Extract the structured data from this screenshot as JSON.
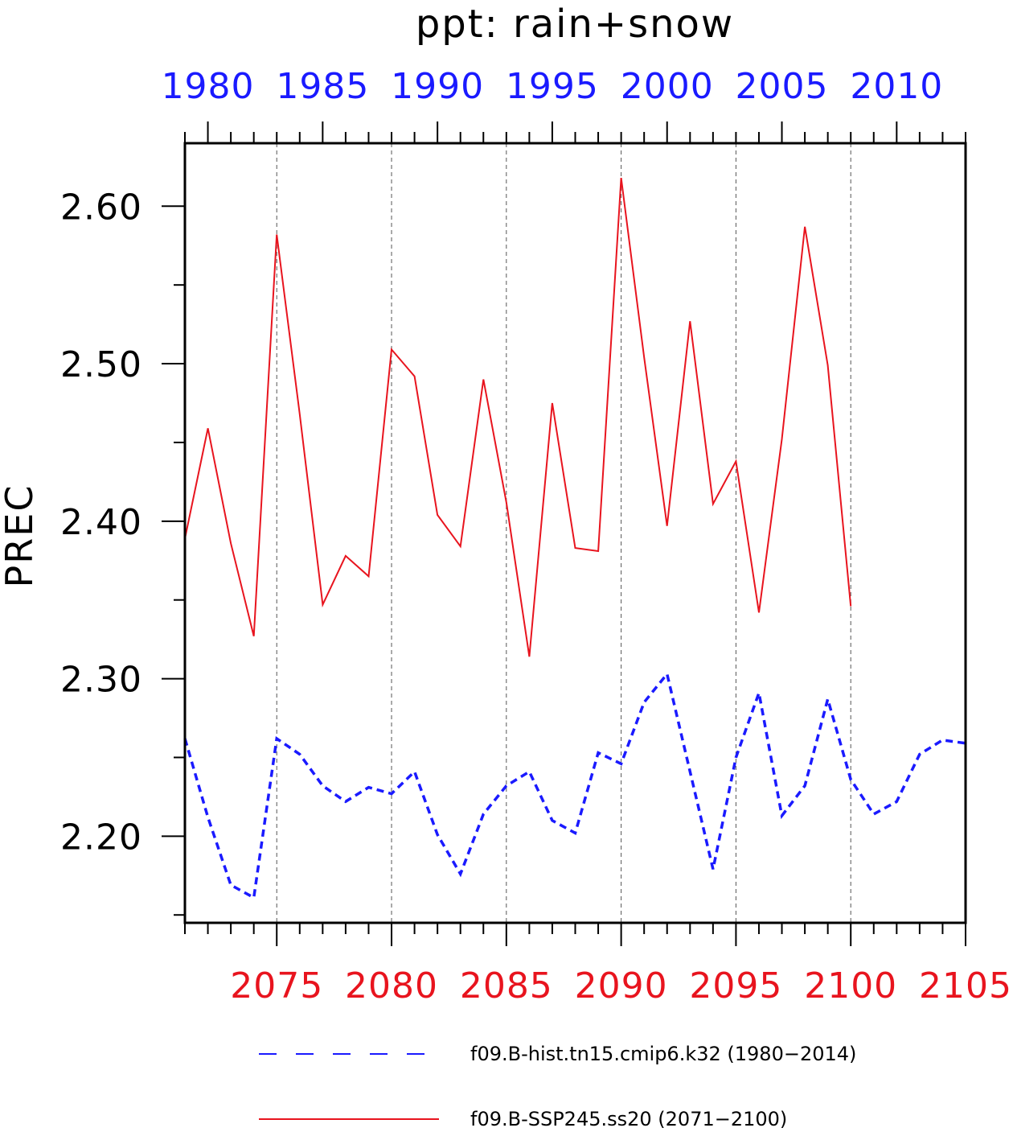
{
  "chart_data": {
    "type": "line",
    "title": "ppt: rain+snow",
    "ylabel": "PREC",
    "ylim": [
      2.145,
      2.64
    ],
    "yticks": [
      "2.20",
      "2.30",
      "2.40",
      "2.50",
      "2.60"
    ],
    "ytick_values": [
      2.2,
      2.3,
      2.4,
      2.5,
      2.6
    ],
    "grid": "vertical dashed at major bottom ticks",
    "top_axis": {
      "color": "#1a1aff",
      "range": [
        1979,
        2013
      ],
      "ticks": [
        "1980",
        "1985",
        "1990",
        "1995",
        "2000",
        "2005",
        "2010"
      ],
      "tick_values": [
        1980,
        1985,
        1990,
        1995,
        2000,
        2005,
        2010
      ]
    },
    "bottom_axis": {
      "color": "#e8141e",
      "range": [
        2071,
        2105
      ],
      "ticks": [
        "2075",
        "2080",
        "2085",
        "2090",
        "2095",
        "2100",
        "2105"
      ],
      "tick_values": [
        2075,
        2080,
        2085,
        2090,
        2095,
        2100,
        2105
      ]
    },
    "series": [
      {
        "name": "f09.B-hist.tn15.cmip6.k32 (1980−2014)",
        "axis": "top",
        "color": "#1a1aff",
        "style": "dashed",
        "x": [
          1979,
          1980,
          1981,
          1982,
          1983,
          1984,
          1985,
          1986,
          1987,
          1988,
          1989,
          1990,
          1991,
          1992,
          1993,
          1994,
          1995,
          1996,
          1997,
          1998,
          1999,
          2000,
          2001,
          2002,
          2003,
          2004,
          2005,
          2006,
          2007,
          2008,
          2009,
          2010,
          2011,
          2012,
          2013
        ],
        "values": [
          2.262,
          2.212,
          2.169,
          2.161,
          2.262,
          2.252,
          2.232,
          2.222,
          2.231,
          2.227,
          2.241,
          2.201,
          2.176,
          2.214,
          2.232,
          2.241,
          2.21,
          2.202,
          2.253,
          2.246,
          2.285,
          2.303,
          2.241,
          2.179,
          2.25,
          2.291,
          2.213,
          2.232,
          2.287,
          2.236,
          2.214,
          2.222,
          2.252,
          2.261,
          2.259
        ]
      },
      {
        "name": "f09.B-SSP245.ss20 (2071−2100)",
        "axis": "bottom",
        "color": "#e8141e",
        "style": "solid",
        "x": [
          2071,
          2072,
          2073,
          2074,
          2075,
          2076,
          2077,
          2078,
          2079,
          2080,
          2081,
          2082,
          2083,
          2084,
          2085,
          2086,
          2087,
          2088,
          2089,
          2090,
          2091,
          2092,
          2093,
          2094,
          2095,
          2096,
          2097,
          2098,
          2099,
          2100
        ],
        "values": [
          2.389,
          2.459,
          2.386,
          2.327,
          2.582,
          2.468,
          2.347,
          2.378,
          2.365,
          2.509,
          2.492,
          2.404,
          2.384,
          2.49,
          2.412,
          2.314,
          2.475,
          2.383,
          2.381,
          2.618,
          2.504,
          2.397,
          2.527,
          2.411,
          2.438,
          2.342,
          2.452,
          2.587,
          2.499,
          2.346
        ]
      }
    ],
    "legend": {
      "placement": "bottom"
    }
  }
}
